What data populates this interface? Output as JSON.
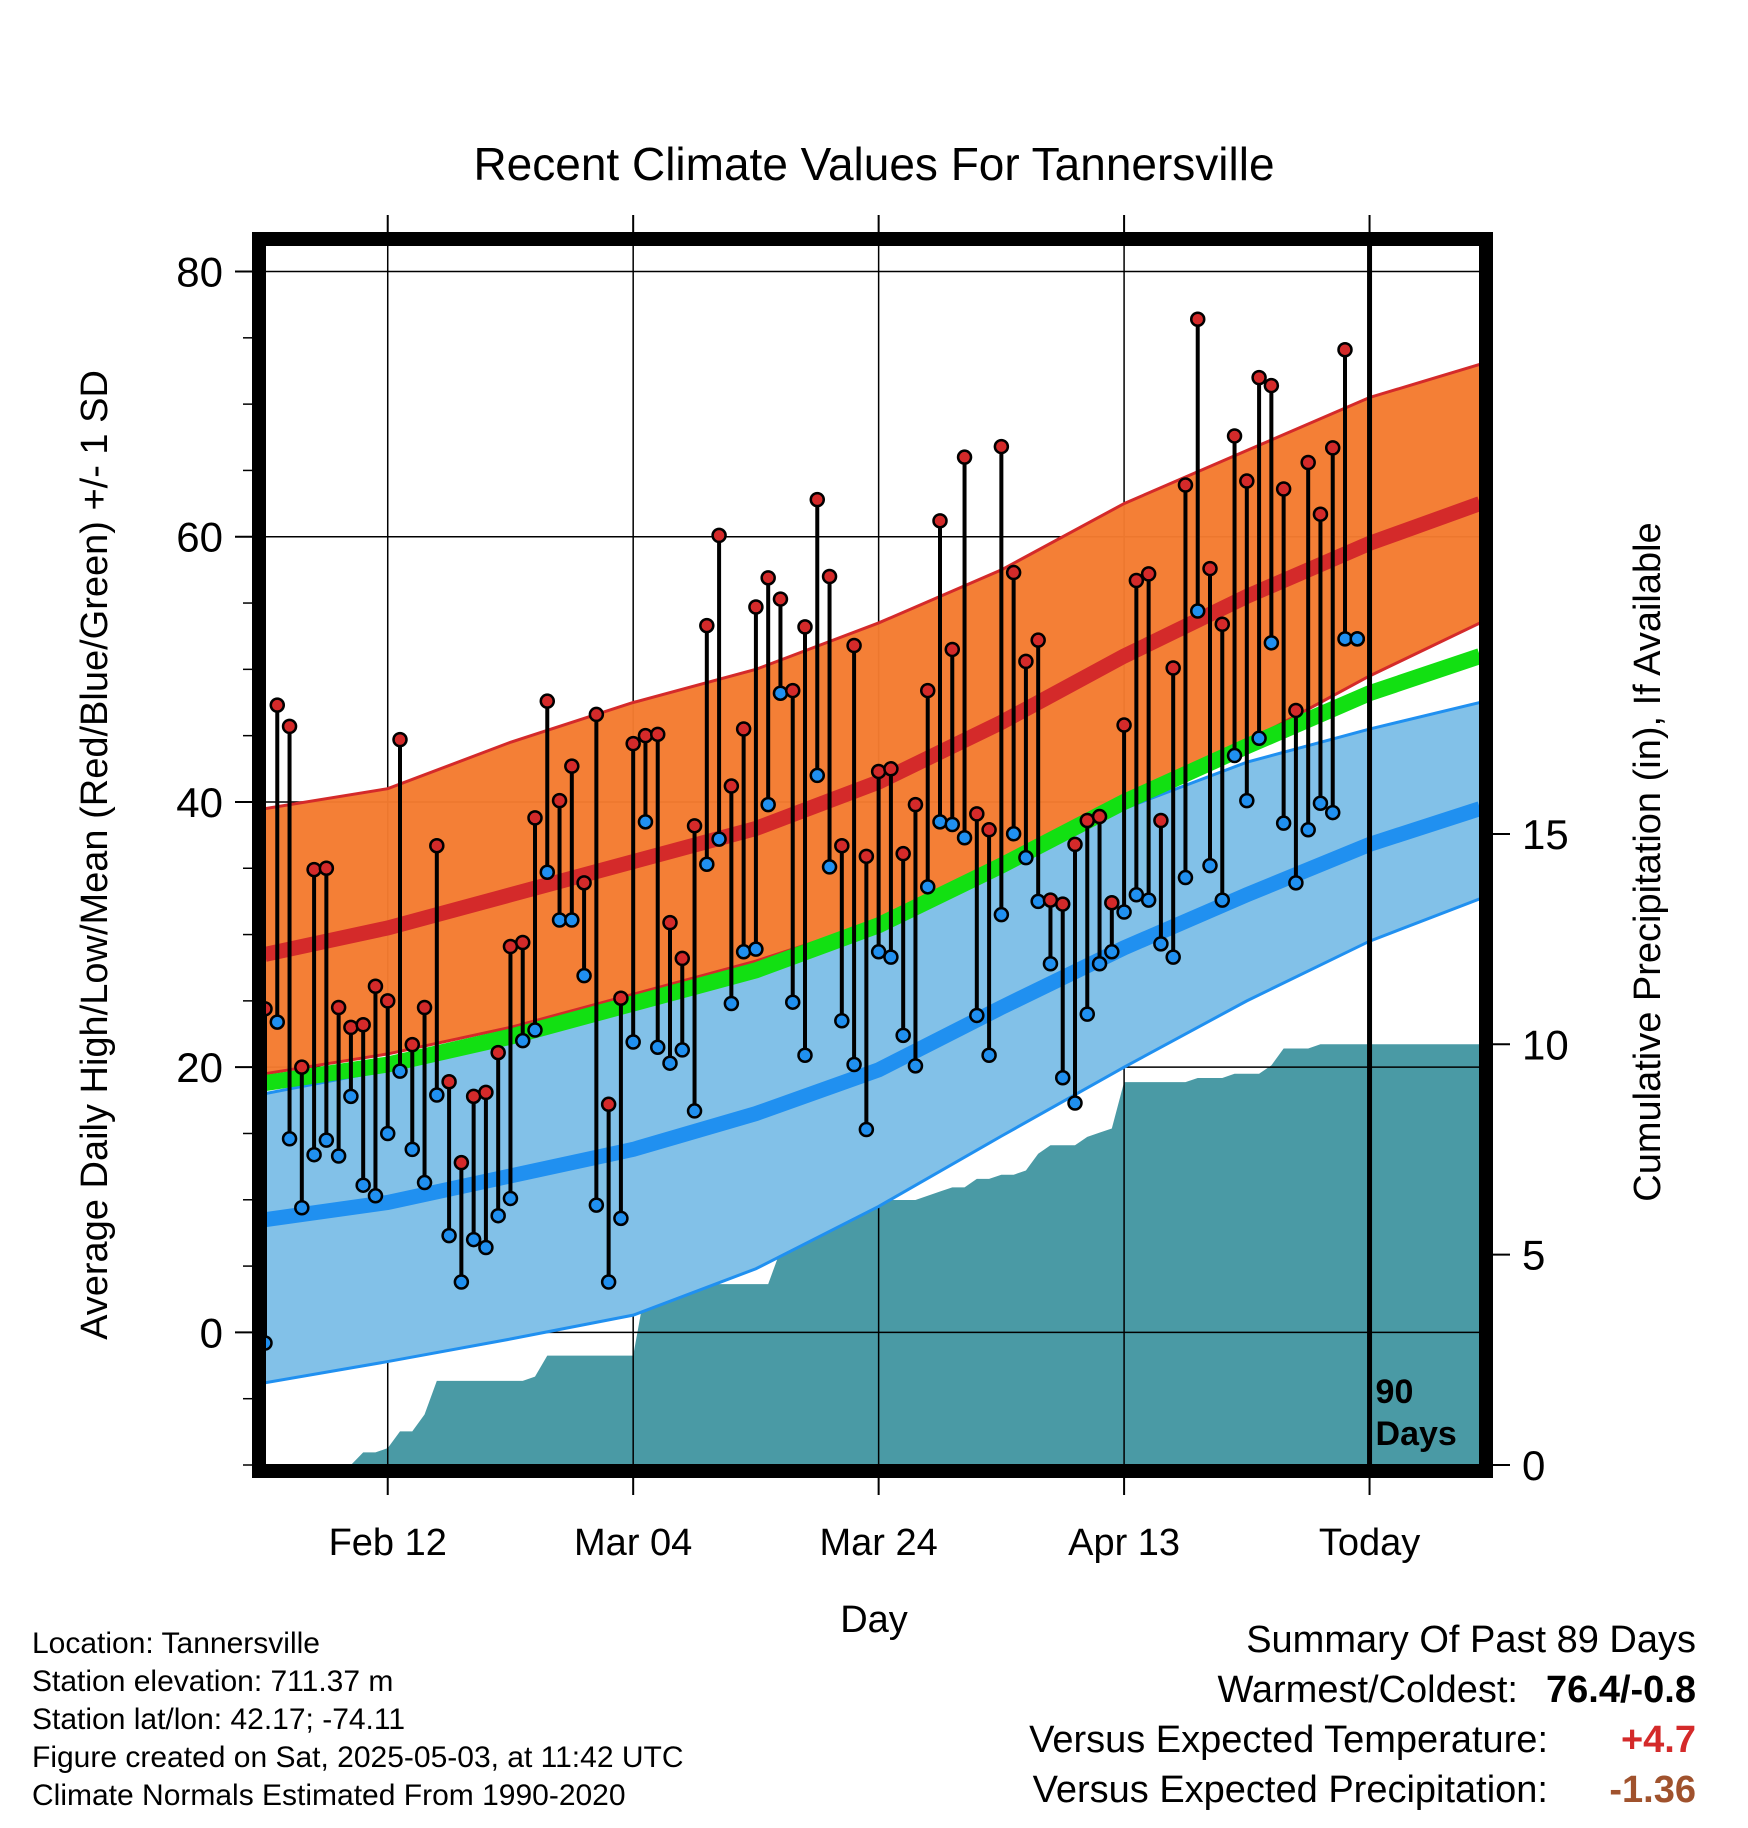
{
  "chart_data": {
    "type": "line",
    "title": "Recent Climate Values For Tannersville",
    "xlabel": "Day",
    "ylabel": "Average Daily High/Low/Mean (Red/Blue/Green) +/- 1 SD",
    "y2label": "Cumulative Precipitation (in), If Available",
    "xticks": [
      {
        "day": 11,
        "label": "Feb 12"
      },
      {
        "day": 31,
        "label": "Mar 04"
      },
      {
        "day": 51,
        "label": "Mar 24"
      },
      {
        "day": 71,
        "label": "Apr 13"
      },
      {
        "day": 91,
        "label": "Today"
      }
    ],
    "xlim": [
      1,
      100
    ],
    "ylim": [
      -10,
      82
    ],
    "y_ticks": [
      0,
      20,
      40,
      60,
      80
    ],
    "y2lim": [
      0,
      29
    ],
    "y2_ticks": [
      0,
      5,
      10,
      15
    ],
    "today_marker": {
      "day": 91,
      "label_line1": "90",
      "label_line2": "Days"
    },
    "colors": {
      "high_band": "#f47b30",
      "high_mean": "#d42a2a",
      "low_band": "#82c1e8",
      "low_mean": "#2090f0",
      "mean_line": "#12e012",
      "precip": "#4a9aa5",
      "high_dot": "#d42a2a",
      "low_dot": "#2090f0"
    },
    "normals": {
      "days": [
        1,
        11,
        21,
        31,
        41,
        51,
        61,
        71,
        81,
        91,
        100
      ],
      "high_mean": [
        28.5,
        30.5,
        33.0,
        35.5,
        38.0,
        41.5,
        46.0,
        51.0,
        55.5,
        59.5,
        62.5
      ],
      "high_upper": [
        39.5,
        41.0,
        44.5,
        47.5,
        50.0,
        53.5,
        57.5,
        62.5,
        66.5,
        70.5,
        73.0
      ],
      "high_lower": [
        19.5,
        21.0,
        23.0,
        25.5,
        28.0,
        31.0,
        35.5,
        40.0,
        44.5,
        49.5,
        53.5
      ],
      "low_mean": [
        8.5,
        9.8,
        11.8,
        13.8,
        16.5,
        19.8,
        24.5,
        29.0,
        33.0,
        36.8,
        39.5
      ],
      "low_upper": [
        18.0,
        19.8,
        22.0,
        24.5,
        27.0,
        31.0,
        35.5,
        39.5,
        43.0,
        45.5,
        47.5
      ],
      "low_lower": [
        -3.8,
        -2.2,
        -0.5,
        1.3,
        4.8,
        9.5,
        14.8,
        20.0,
        25.0,
        29.5,
        32.7
      ],
      "mean": [
        18.8,
        20.2,
        22.3,
        24.8,
        27.3,
        30.7,
        35.2,
        40.0,
        44.2,
        48.2,
        51.0
      ]
    },
    "daily": {
      "days": [
        1,
        2,
        3,
        4,
        5,
        6,
        7,
        8,
        9,
        10,
        11,
        12,
        13,
        14,
        15,
        16,
        17,
        18,
        19,
        20,
        21,
        22,
        23,
        24,
        25,
        26,
        27,
        28,
        29,
        30,
        31,
        32,
        33,
        34,
        35,
        36,
        37,
        38,
        39,
        40,
        41,
        42,
        43,
        44,
        45,
        46,
        47,
        48,
        49,
        50,
        51,
        52,
        53,
        54,
        55,
        56,
        57,
        58,
        59,
        60,
        61,
        62,
        63,
        64,
        65,
        66,
        67,
        68,
        69,
        70,
        71,
        72,
        73,
        74,
        75,
        76,
        77,
        78,
        79,
        80,
        81,
        82,
        83,
        84,
        85,
        86,
        87,
        88,
        89,
        90
      ],
      "high": [
        24.4,
        47.3,
        45.7,
        20.0,
        34.9,
        35.0,
        24.5,
        23.0,
        23.2,
        26.1,
        25.0,
        44.7,
        21.7,
        24.5,
        36.7,
        18.9,
        12.8,
        17.8,
        18.1,
        21.1,
        29.1,
        29.4,
        38.8,
        47.6,
        40.1,
        42.7,
        33.9,
        46.6,
        17.2,
        25.2,
        44.4,
        45.0,
        45.1,
        30.9,
        28.2,
        38.2,
        53.3,
        60.1,
        41.2,
        45.5,
        54.7,
        56.9,
        55.3,
        48.4,
        53.2,
        62.8,
        57.0,
        36.7,
        51.8,
        35.9,
        42.3,
        42.5,
        36.1,
        39.8,
        48.4,
        61.2,
        51.5,
        66.0,
        39.1,
        37.9,
        66.8,
        57.3,
        50.6,
        52.2,
        32.6,
        32.3,
        36.8,
        38.6,
        38.9,
        32.4,
        45.8,
        56.7,
        57.2,
        38.6,
        50.1,
        63.9,
        76.4,
        57.6,
        53.4,
        67.6,
        64.2,
        72.0,
        71.4,
        63.6,
        46.9,
        65.6,
        61.7,
        66.7,
        74.1,
        52.3
      ],
      "low": [
        -0.8,
        23.4,
        14.6,
        9.4,
        13.4,
        14.5,
        13.3,
        17.8,
        11.1,
        10.3,
        15.0,
        19.7,
        13.8,
        11.3,
        17.9,
        7.3,
        3.8,
        7.0,
        6.4,
        8.8,
        10.1,
        22.0,
        22.8,
        34.7,
        31.1,
        31.1,
        26.9,
        9.6,
        3.8,
        8.6,
        21.9,
        38.5,
        21.5,
        20.3,
        21.3,
        16.7,
        35.3,
        37.2,
        24.8,
        28.7,
        28.9,
        39.8,
        48.2,
        24.9,
        20.9,
        42.0,
        35.1,
        23.5,
        20.2,
        15.3,
        28.7,
        28.3,
        22.4,
        20.1,
        33.6,
        38.5,
        38.3,
        37.3,
        23.9,
        20.9,
        31.5,
        37.6,
        35.8,
        32.5,
        27.8,
        19.2,
        17.3,
        24.0,
        27.8,
        28.7,
        31.7,
        33.0,
        32.6,
        29.3,
        28.3,
        34.3,
        54.4,
        35.2,
        32.6,
        43.5,
        40.1,
        44.8,
        52.0,
        38.4,
        33.9,
        37.9,
        39.9,
        39.2,
        52.3,
        52.3
      ]
    },
    "precip": {
      "days": [
        1,
        2,
        3,
        4,
        5,
        6,
        7,
        8,
        9,
        10,
        11,
        12,
        13,
        14,
        15,
        16,
        17,
        18,
        19,
        20,
        21,
        22,
        23,
        24,
        25,
        26,
        27,
        28,
        29,
        30,
        31,
        32,
        33,
        34,
        35,
        36,
        37,
        38,
        39,
        40,
        41,
        42,
        43,
        44,
        45,
        46,
        47,
        48,
        49,
        50,
        51,
        52,
        53,
        54,
        55,
        56,
        57,
        58,
        59,
        60,
        61,
        62,
        63,
        64,
        65,
        66,
        67,
        68,
        69,
        70,
        71,
        72,
        73,
        74,
        75,
        76,
        77,
        78,
        79,
        80,
        81,
        82,
        83,
        84,
        85,
        86,
        87,
        88,
        89,
        90,
        91,
        92,
        93,
        94,
        95,
        96,
        97,
        98,
        99,
        100
      ],
      "cumulative": [
        0,
        0,
        0,
        0,
        0,
        0,
        0,
        0,
        0.3,
        0.3,
        0.4,
        0.8,
        0.8,
        1.2,
        2.0,
        2.0,
        2.0,
        2.0,
        2.0,
        2.0,
        2.0,
        2.0,
        2.1,
        2.6,
        2.6,
        2.6,
        2.6,
        2.6,
        2.6,
        2.6,
        2.6,
        4.2,
        4.3,
        4.3,
        4.3,
        4.3,
        4.3,
        4.3,
        4.3,
        4.3,
        4.3,
        4.3,
        5.1,
        5.5,
        5.5,
        5.6,
        6.0,
        6.1,
        6.1,
        6.2,
        6.2,
        6.3,
        6.3,
        6.3,
        6.4,
        6.5,
        6.6,
        6.6,
        6.8,
        6.8,
        6.9,
        6.9,
        7.0,
        7.4,
        7.6,
        7.6,
        7.6,
        7.8,
        7.9,
        8.0,
        9.1,
        9.1,
        9.1,
        9.1,
        9.1,
        9.1,
        9.2,
        9.2,
        9.2,
        9.3,
        9.3,
        9.3,
        9.5,
        9.9,
        9.9,
        9.9,
        10.0,
        10.0,
        10.0,
        10.0,
        10.0,
        10.0,
        10.0,
        10.0,
        10.0,
        10.0,
        10.0,
        10.0,
        10.0,
        10.0
      ]
    }
  },
  "footer": {
    "location": "Location: Tannersville",
    "elevation": "Station elevation: 711.37 m",
    "latlon": "Station lat/lon: 42.17; -74.11",
    "created": "Figure created on Sat, 2025-05-03, at 11:42 UTC",
    "normals": "Climate Normals Estimated From 1990-2020"
  },
  "summary": {
    "title": "Summary Of Past 89 Days",
    "warmest_label": "Warmest/Coldest:",
    "warmest_value": "76.4/-0.8",
    "temp_label": "Versus Expected Temperature:",
    "temp_value": "+4.7",
    "temp_color": "#d42a2a",
    "precip_label": "Versus Expected Precipitation:",
    "precip_value": "-1.36",
    "precip_color": "#a0522d"
  }
}
